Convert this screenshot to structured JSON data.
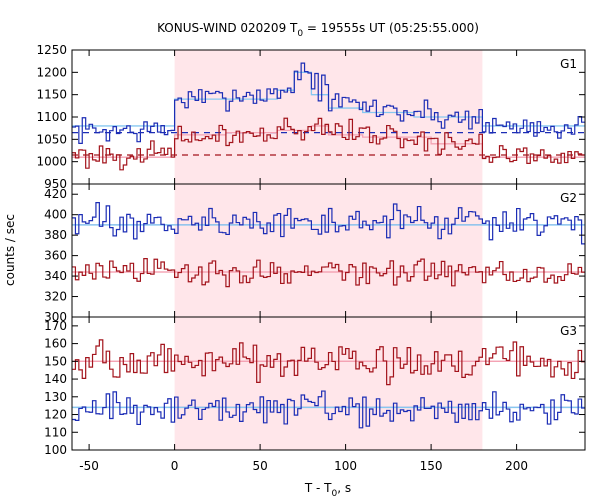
{
  "chart_data": {
    "type": "line",
    "title": "KONUS-WIND 020209 T",
    "title_sub": "0",
    "title_rest": " = 19555s UT (05:25:55.000)",
    "xlabel": "T - T",
    "xlabel_sub": "0",
    "xlabel_rest": ", s",
    "ylabel": "counts / sec",
    "xlim": [
      -60,
      240
    ],
    "x_ticks": [
      "-50",
      "0",
      "50",
      "100",
      "150",
      "200"
    ],
    "x_tick_values": [
      -50,
      0,
      50,
      100,
      150,
      200
    ],
    "shaded_interval": [
      0,
      180
    ],
    "shade_color": "#ffe6ea",
    "colors": {
      "blue": "#1c2db5",
      "red": "#a3141c",
      "lightblue": "#87c8f0",
      "pink": "#f4a3b4"
    },
    "panels": [
      {
        "label": "G1",
        "ylim": [
          950,
          1250
        ],
        "y_ticks": [
          950,
          1000,
          1050,
          1100,
          1150,
          1200,
          1250
        ],
        "blue_background": 1065,
        "red_background": 1015,
        "blue_level": {
          "start": 1080,
          "segments": [
            [
              0,
              1140
            ],
            [
              60,
              1160
            ],
            [
              70,
              1200
            ],
            [
              80,
              1150
            ],
            [
              90,
              1120
            ],
            [
              110,
              1110
            ],
            [
              140,
              1100
            ],
            [
              180,
              1080
            ]
          ]
        },
        "red_level": {
          "start": 1010,
          "segments": [
            [
              0,
              1060
            ],
            [
              30,
              1065
            ],
            [
              60,
              1070
            ],
            [
              80,
              1080
            ],
            [
              90,
              1060
            ],
            [
              110,
              1055
            ],
            [
              150,
              1040
            ],
            [
              180,
              1010
            ]
          ]
        },
        "blue_series": {
          "base": 1070,
          "amp": 22,
          "burst": [
            [
              0,
              1140
            ],
            [
              30,
              1150
            ],
            [
              60,
              1160
            ],
            [
              70,
              1205
            ],
            [
              80,
              1170
            ],
            [
              90,
              1130
            ],
            [
              110,
              1120
            ],
            [
              130,
              1110
            ],
            [
              150,
              1100
            ],
            [
              180,
              1080
            ]
          ]
        },
        "red_series": {
          "base": 1015,
          "amp": 20,
          "burst": [
            [
              0,
              1055
            ],
            [
              30,
              1060
            ],
            [
              60,
              1070
            ],
            [
              80,
              1085
            ],
            [
              90,
              1070
            ],
            [
              110,
              1060
            ],
            [
              130,
              1050
            ],
            [
              150,
              1040
            ],
            [
              180,
              1015
            ]
          ]
        }
      },
      {
        "label": "G2",
        "ylim": [
          300,
          430
        ],
        "y_ticks": [
          300,
          320,
          340,
          360,
          380,
          400,
          420
        ],
        "blue_background": 390,
        "red_background": 344,
        "blue_level": {
          "start": 390,
          "segments": []
        },
        "red_level": {
          "start": 344,
          "segments": []
        },
        "blue_series": {
          "base": 392,
          "amp": 12,
          "burst": []
        },
        "red_series": {
          "base": 344,
          "amp": 10,
          "burst": []
        }
      },
      {
        "label": "G3",
        "ylim": [
          100,
          175
        ],
        "y_ticks": [
          100,
          110,
          120,
          130,
          140,
          150,
          160,
          170
        ],
        "blue_background": 124,
        "red_background": 150,
        "blue_level": {
          "start": 124,
          "segments": []
        },
        "red_level": {
          "start": 150,
          "segments": []
        },
        "blue_series": {
          "base": 123,
          "amp": 7,
          "burst": []
        },
        "red_series": {
          "base": 150,
          "amp": 8,
          "burst": []
        }
      }
    ]
  }
}
